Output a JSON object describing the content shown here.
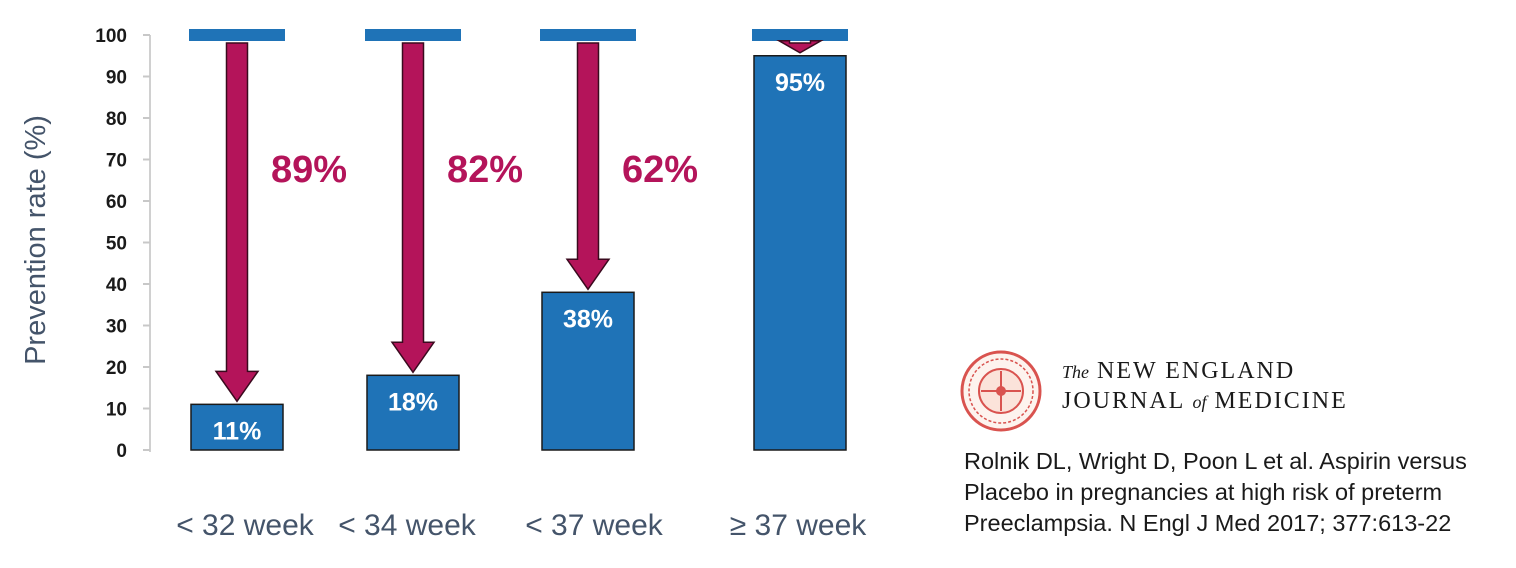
{
  "chart_data": {
    "type": "bar",
    "ylabel": "Prevention rate (%)",
    "ylim": [
      0,
      100
    ],
    "yticks": [
      "0",
      "10",
      "20",
      "30",
      "40",
      "50",
      "60",
      "70",
      "80",
      "90",
      "100"
    ],
    "categories": [
      "< 32 week",
      "< 34 week",
      "< 37 week",
      "≥ 37 week"
    ],
    "values": [
      11,
      18,
      38,
      95
    ],
    "bar_labels": [
      "11%",
      "18%",
      "38%",
      "95%"
    ],
    "reduction_labels": [
      "89%",
      "82%",
      "62%",
      ""
    ],
    "baseline": 100,
    "grid": false,
    "colors": {
      "bar": "#1f73b7",
      "arrow": "#b4145a",
      "baseline": "#1f73b7"
    }
  },
  "journal": {
    "the": "The",
    "line1": "NEW ENGLAND",
    "line2a": "JOURNAL",
    "of": "of",
    "line2b": "MEDICINE",
    "seal_icon": "nejm-seal"
  },
  "citation": {
    "line1": "Rolnik DL, Wright D, Poon L et al. Aspirin versus",
    "line2": "Placebo in pregnancies at high risk of preterm",
    "line3": "Preeclampsia. N Engl J Med 2017; 377:613-22"
  }
}
